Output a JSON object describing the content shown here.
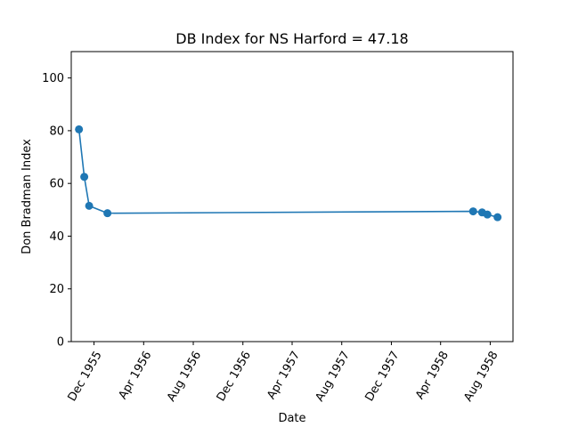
{
  "chart_data": {
    "type": "line",
    "title": "DB Index for NS Harford = 47.18",
    "xlabel": "Date",
    "ylabel": "Don Bradman Index",
    "ylim": [
      0,
      110
    ],
    "xlim": [
      "1955-10-06",
      "1958-09-26"
    ],
    "y_ticks": [
      0,
      20,
      40,
      60,
      80,
      100
    ],
    "x_ticks": [
      {
        "date": "1955-12-01",
        "label": "Dec 1955"
      },
      {
        "date": "1956-04-01",
        "label": "Apr 1956"
      },
      {
        "date": "1956-08-01",
        "label": "Aug 1956"
      },
      {
        "date": "1956-12-01",
        "label": "Dec 1956"
      },
      {
        "date": "1957-04-01",
        "label": "Apr 1957"
      },
      {
        "date": "1957-08-01",
        "label": "Aug 1957"
      },
      {
        "date": "1957-12-01",
        "label": "Dec 1957"
      },
      {
        "date": "1958-04-01",
        "label": "Apr 1958"
      },
      {
        "date": "1958-08-01",
        "label": "Aug 1958"
      }
    ],
    "series": [
      {
        "color": "#1f77b4",
        "marker": "circle",
        "points": [
          {
            "x": "1955-10-25",
            "y": 80.5
          },
          {
            "x": "1955-11-07",
            "y": 62.5
          },
          {
            "x": "1955-11-19",
            "y": 51.5
          },
          {
            "x": "1956-01-03",
            "y": 48.7
          },
          {
            "x": "1958-06-20",
            "y": 49.4
          },
          {
            "x": "1958-07-12",
            "y": 49.0
          },
          {
            "x": "1958-07-25",
            "y": 48.2
          },
          {
            "x": "1958-08-19",
            "y": 47.18
          }
        ]
      }
    ],
    "grid": false,
    "legend": "none"
  }
}
